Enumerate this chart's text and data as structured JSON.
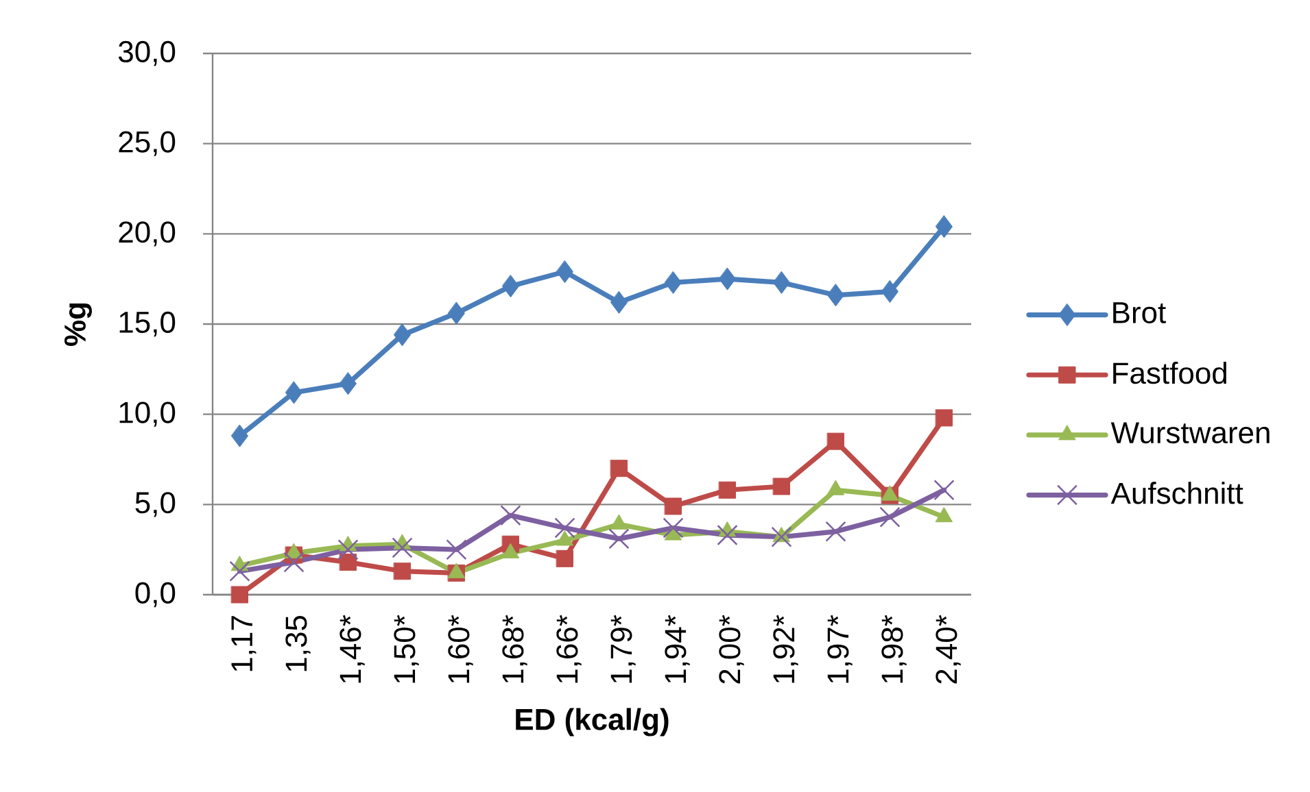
{
  "chart_data": {
    "type": "line",
    "xlabel": "ED (kcal/g)",
    "ylabel": "%g",
    "categories": [
      "1,17",
      "1,35",
      "1,46*",
      "1,50*",
      "1,60*",
      "1,68*",
      "1,66*",
      "1,79*",
      "1,94*",
      "2,00*",
      "1,92*",
      "1,97*",
      "1,98*",
      "2,40*"
    ],
    "series": [
      {
        "name": "Brot",
        "color": "#4a7ebb",
        "marker": "diamond",
        "values": [
          8.8,
          11.2,
          11.7,
          14.4,
          15.6,
          17.1,
          17.9,
          16.2,
          17.3,
          17.5,
          17.3,
          16.6,
          16.8,
          20.4
        ]
      },
      {
        "name": "Fastfood",
        "color": "#be4b48",
        "marker": "square",
        "values": [
          0.0,
          2.2,
          1.8,
          1.3,
          1.2,
          2.8,
          2.0,
          7.0,
          4.9,
          5.8,
          6.0,
          8.5,
          5.5,
          9.8
        ]
      },
      {
        "name": "Wurstwaren",
        "color": "#98b954",
        "marker": "triangle",
        "values": [
          1.6,
          2.3,
          2.7,
          2.8,
          1.2,
          2.3,
          3.0,
          3.9,
          3.3,
          3.5,
          3.2,
          5.8,
          5.5,
          4.3
        ]
      },
      {
        "name": "Aufschnitt",
        "color": "#7d60a0",
        "marker": "cross",
        "values": [
          1.3,
          1.8,
          2.5,
          2.6,
          2.5,
          4.4,
          3.7,
          3.1,
          3.7,
          3.3,
          3.2,
          3.5,
          4.3,
          5.8
        ]
      }
    ],
    "ylim": [
      0,
      30
    ],
    "yticks": [
      {
        "value": 0,
        "label": "0,0"
      },
      {
        "value": 5,
        "label": "5,0"
      },
      {
        "value": 10,
        "label": "10,0"
      },
      {
        "value": 15,
        "label": "15,0"
      },
      {
        "value": 20,
        "label": "20,0"
      },
      {
        "value": 25,
        "label": "25,0"
      },
      {
        "value": 30,
        "label": "30,0"
      }
    ],
    "grid": "y",
    "legend": "right"
  }
}
